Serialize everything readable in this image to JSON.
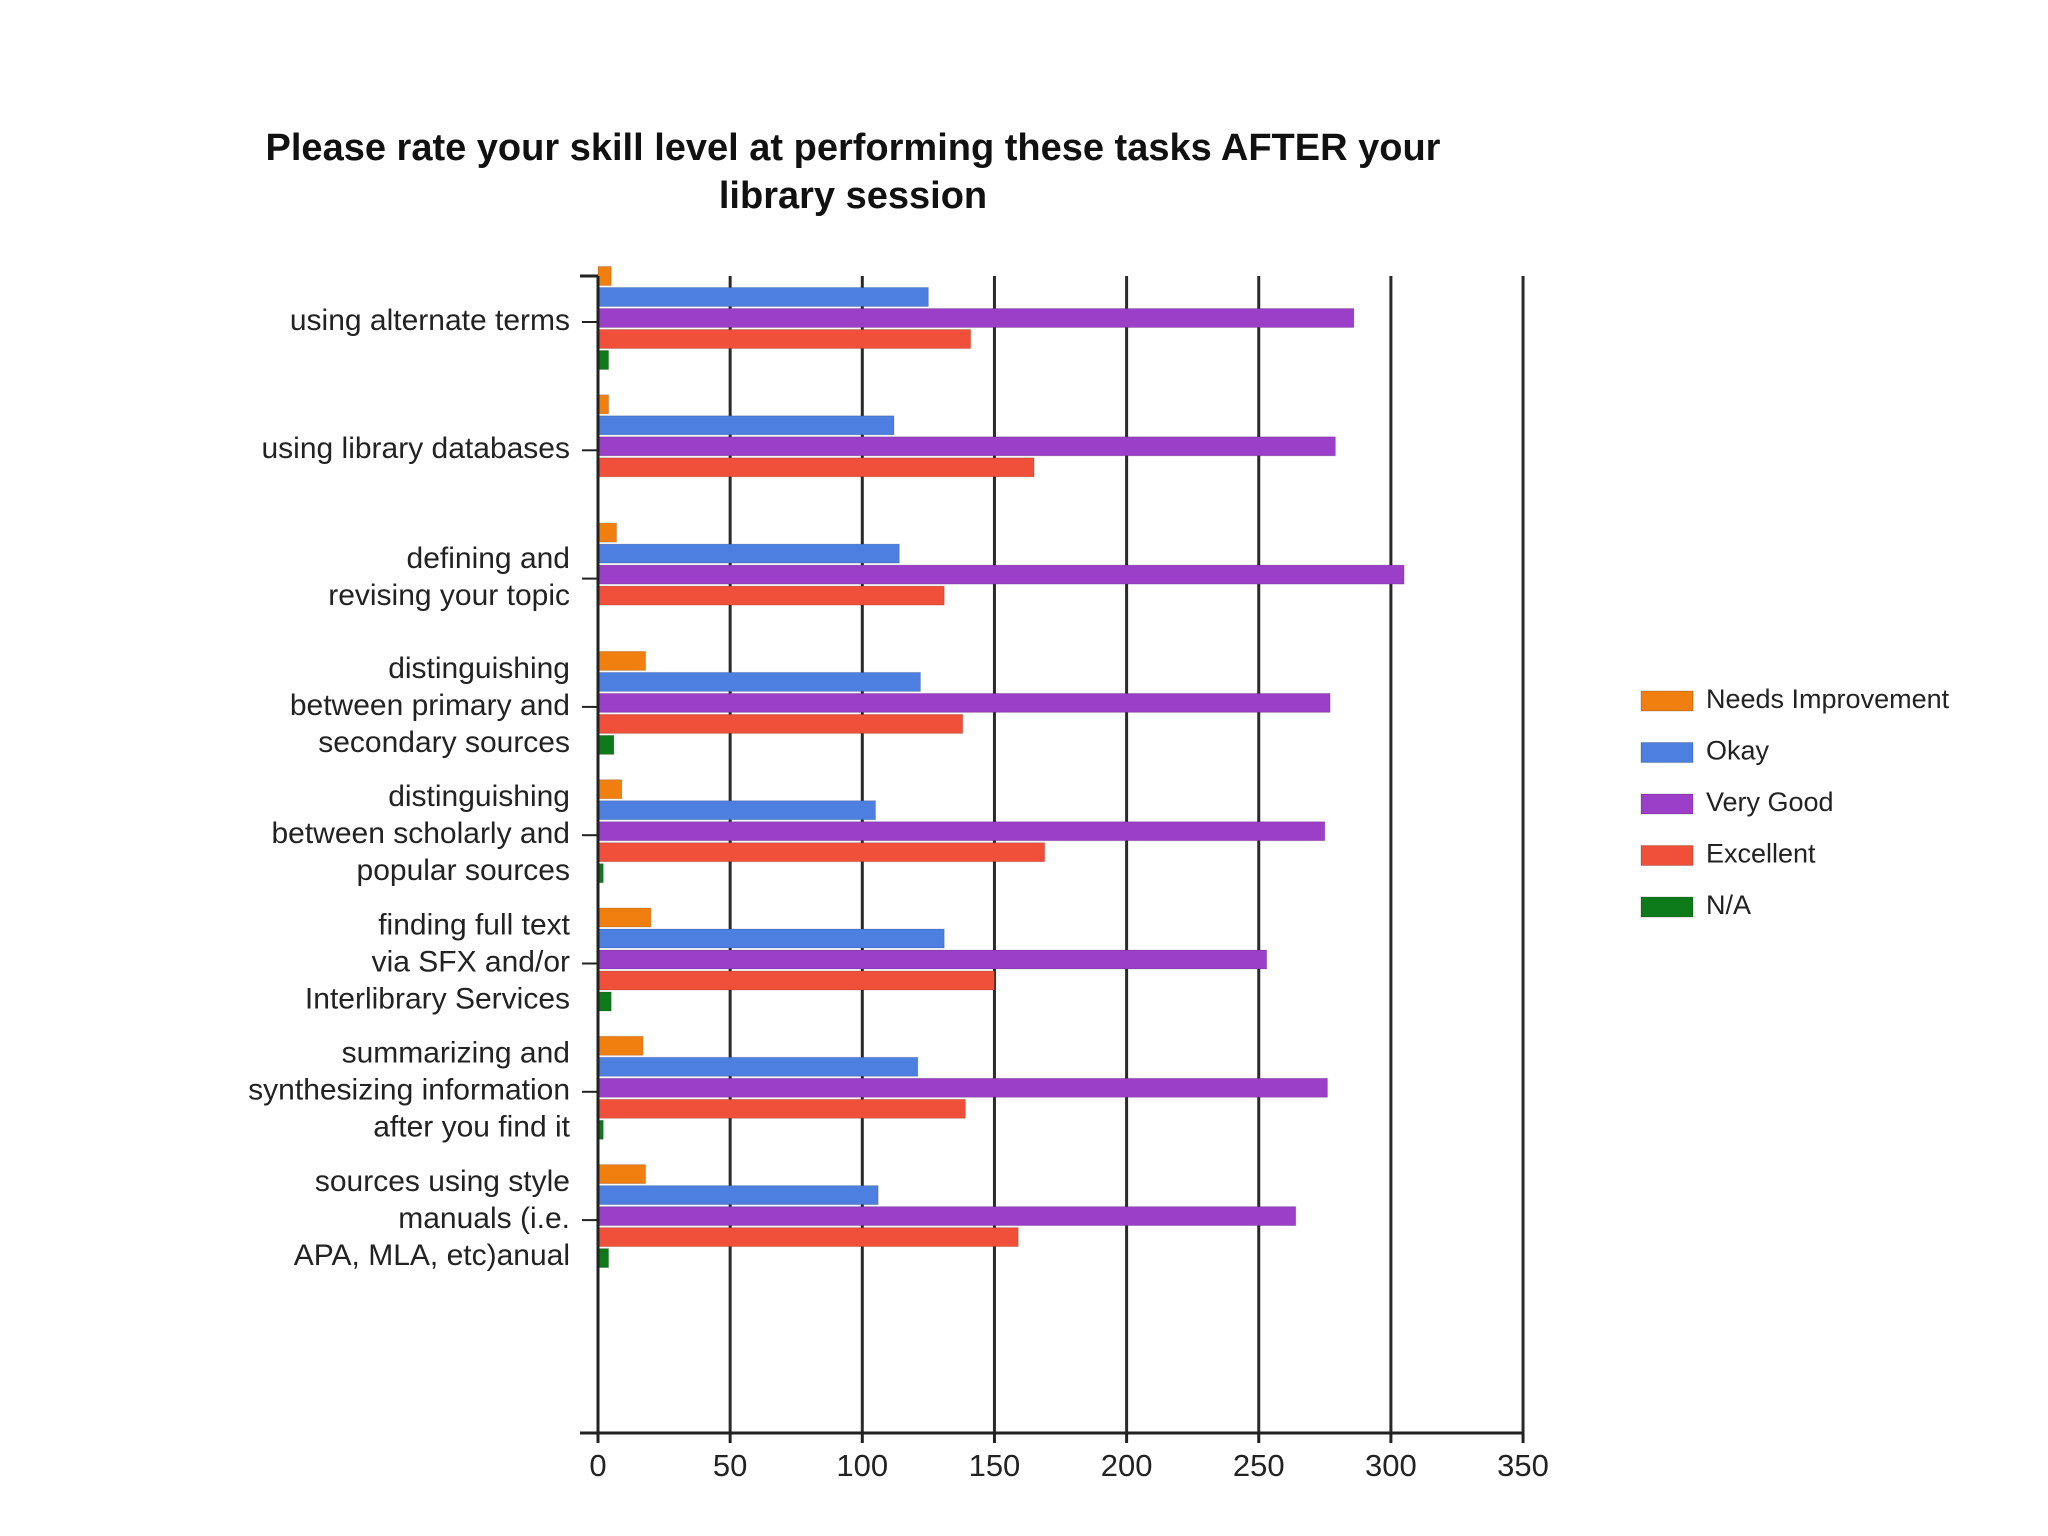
{
  "chart_data": {
    "type": "bar",
    "orientation": "horizontal",
    "title_lines": [
      "Please rate your skill level at performing these tasks AFTER your",
      "library session"
    ],
    "categories": [
      [
        "using alternate terms"
      ],
      [
        "using library databases"
      ],
      [
        "defining and",
        "revising your topic"
      ],
      [
        "distinguishing",
        "between primary and",
        "secondary sources"
      ],
      [
        "distinguishing",
        "between scholarly and",
        "popular sources"
      ],
      [
        "finding full text",
        "via SFX and/or",
        "Interlibrary Services"
      ],
      [
        "summarizing and",
        "synthesizing information",
        "after you find it"
      ],
      [
        "sources using style",
        "manuals (i.e.",
        "APA, MLA, etc)anual"
      ]
    ],
    "series": [
      {
        "name": "Needs Improvement",
        "color": "#f07f10",
        "values": [
          5,
          4,
          7,
          18,
          9,
          20,
          17,
          18
        ]
      },
      {
        "name": "Okay",
        "color": "#4c7fe0",
        "values": [
          125,
          112,
          114,
          122,
          105,
          131,
          121,
          106
        ]
      },
      {
        "name": "Very Good",
        "color": "#9b3fc8",
        "values": [
          286,
          279,
          305,
          277,
          275,
          253,
          276,
          264
        ]
      },
      {
        "name": "Excellent",
        "color": "#f0503a",
        "values": [
          141,
          165,
          131,
          138,
          169,
          150,
          139,
          159
        ]
      },
      {
        "name": "N/A",
        "color": "#0d7a1a",
        "values": [
          4,
          0,
          0,
          6,
          2,
          5,
          2,
          4
        ]
      }
    ],
    "xlim": [
      0,
      350
    ],
    "xticks": [
      "0",
      "50",
      "100",
      "150",
      "200",
      "250",
      "300",
      "350"
    ],
    "grid": "vertical",
    "legend_position": "right"
  }
}
